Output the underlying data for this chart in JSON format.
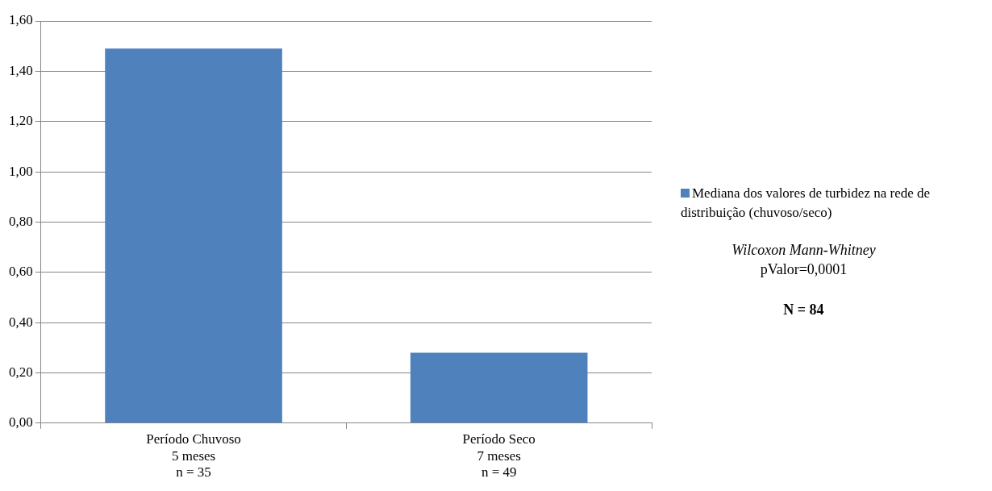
{
  "chart_data": {
    "type": "bar",
    "categories": [
      "Período Chuvoso\n5 meses\nn = 35",
      "Período Seco\n7 meses\nn = 49"
    ],
    "series": [
      {
        "name": "Mediana dos valores de turbidez na rede de distribuição (chuvoso/seco)",
        "color": "#4f81bd",
        "values": [
          1.49,
          0.28
        ]
      }
    ],
    "ylim": [
      0,
      1.6
    ],
    "yticks": [
      {
        "value": 0,
        "label": "0,00"
      },
      {
        "value": 0.2,
        "label": "0,20"
      },
      {
        "value": 0.4,
        "label": "0,40"
      },
      {
        "value": 0.6,
        "label": "0,60"
      },
      {
        "value": 0.8,
        "label": "0,80"
      },
      {
        "value": 1,
        "label": "1,00"
      },
      {
        "value": 1.2,
        "label": "1,20"
      },
      {
        "value": 1.4,
        "label": "1,40"
      },
      {
        "value": 1.6,
        "label": "1,60"
      }
    ],
    "grid": "y",
    "legend": "right",
    "annotations": [
      "Wilcoxon Mann-Whitney",
      "pValor=0,0001",
      "N = 84"
    ]
  }
}
